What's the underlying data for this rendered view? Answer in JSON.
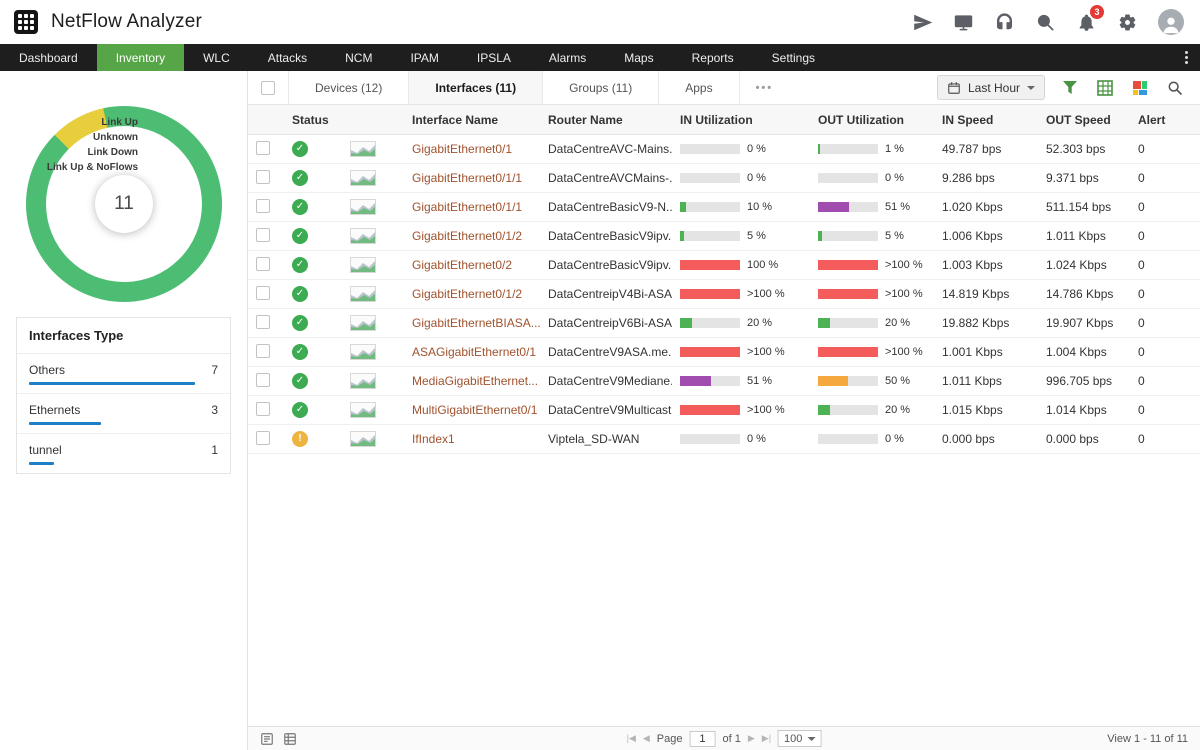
{
  "colors": {
    "accent_green": "#56a546",
    "link_brown": "#a0522d",
    "bar_blue": "#1d7fc4"
  },
  "header": {
    "title": "NetFlow Analyzer",
    "notification_count": "3"
  },
  "nav": {
    "items": [
      {
        "label": "Dashboard",
        "cls": ""
      },
      {
        "label": "Inventory",
        "cls": "active"
      },
      {
        "label": "WLC",
        "cls": ""
      },
      {
        "label": "Attacks",
        "cls": ""
      },
      {
        "label": "NCM",
        "cls": ""
      },
      {
        "label": "IPAM",
        "cls": ""
      },
      {
        "label": "IPSLA",
        "cls": ""
      },
      {
        "label": "Alarms",
        "cls": ""
      },
      {
        "label": "Maps",
        "cls": ""
      },
      {
        "label": "Reports",
        "cls": ""
      },
      {
        "label": "Settings",
        "cls": ""
      }
    ]
  },
  "sidebar": {
    "donut": {
      "center_value": "11",
      "start_angle": -45,
      "segments": [
        {
          "label": "Unknown",
          "value": 1,
          "color": "#e8ce3c"
        },
        {
          "label": "Link Up",
          "value": 10,
          "color": "#4dbd74"
        }
      ],
      "legend": [
        {
          "label": "Link Up"
        },
        {
          "label": "Unknown"
        },
        {
          "label": "Link Down"
        },
        {
          "label": "Link Up & NoFlows"
        }
      ]
    },
    "interfaces_type": {
      "title": "Interfaces Type",
      "items": [
        {
          "label": "Others",
          "count": "7",
          "fill_pct": 88
        },
        {
          "label": "Ethernets",
          "count": "3",
          "fill_pct": 38
        },
        {
          "label": "tunnel",
          "count": "1",
          "fill_pct": 13
        }
      ]
    }
  },
  "toolbar": {
    "tabs": [
      {
        "label": "Devices (12)",
        "cls": ""
      },
      {
        "label": "Interfaces (11)",
        "cls": "active"
      },
      {
        "label": "Groups (11)",
        "cls": ""
      },
      {
        "label": "Apps",
        "cls": ""
      }
    ],
    "overflow_label": "•••",
    "time_range": "Last Hour"
  },
  "table": {
    "columns": [
      "Status",
      "Interface Name",
      "Router Name",
      "IN Utilization",
      "OUT Utilization",
      "IN Speed",
      "OUT Speed",
      "Alert"
    ],
    "rows": [
      {
        "status_glyph": "✓",
        "status_color": "#3cab51",
        "interface": "GigabitEthernet0/1",
        "router": "DataCentreAVC-Mains...",
        "in_pct": "0 %",
        "in_fill": 0,
        "in_color": "#e4e4e4",
        "out_pct": "1 %",
        "out_fill": 3,
        "out_color": "#4db254",
        "in_speed": "49.787 bps",
        "out_speed": "52.303 bps",
        "alert": "0"
      },
      {
        "status_glyph": "✓",
        "status_color": "#3cab51",
        "interface": "GigabitEthernet0/1/1",
        "router": "DataCentreAVCMains-...",
        "in_pct": "0 %",
        "in_fill": 0,
        "in_color": "#e4e4e4",
        "out_pct": "0 %",
        "out_fill": 0,
        "out_color": "#e4e4e4",
        "in_speed": "9.286 bps",
        "out_speed": "9.371 bps",
        "alert": "0"
      },
      {
        "status_glyph": "✓",
        "status_color": "#3cab51",
        "interface": "GigabitEthernet0/1/1",
        "router": "DataCentreBasicV9-N...",
        "in_pct": "10 %",
        "in_fill": 10,
        "in_color": "#4db254",
        "out_pct": "51 %",
        "out_fill": 51,
        "out_color": "#a14db0",
        "in_speed": "1.020 Kbps",
        "out_speed": "511.154 bps",
        "alert": "0"
      },
      {
        "status_glyph": "✓",
        "status_color": "#3cab51",
        "interface": "GigabitEthernet0/1/2",
        "router": "DataCentreBasicV9ipv...",
        "in_pct": "5 %",
        "in_fill": 6,
        "in_color": "#4db254",
        "out_pct": "5 %",
        "out_fill": 6,
        "out_color": "#4db254",
        "in_speed": "1.006 Kbps",
        "out_speed": "1.011 Kbps",
        "alert": "0"
      },
      {
        "status_glyph": "✓",
        "status_color": "#3cab51",
        "interface": "GigabitEthernet0/2",
        "router": "DataCentreBasicV9ipv...",
        "in_pct": "100 %",
        "in_fill": 100,
        "in_color": "#f45b5b",
        "out_pct": ">100 %",
        "out_fill": 100,
        "out_color": "#f45b5b",
        "in_speed": "1.003 Kbps",
        "out_speed": "1.024 Kbps",
        "alert": "0"
      },
      {
        "status_glyph": "✓",
        "status_color": "#3cab51",
        "interface": "GigabitEthernet0/1/2",
        "router": "DataCentreipV4Bi-ASA",
        "in_pct": ">100 %",
        "in_fill": 100,
        "in_color": "#f45b5b",
        "out_pct": ">100 %",
        "out_fill": 100,
        "out_color": "#f45b5b",
        "in_speed": "14.819 Kbps",
        "out_speed": "14.786 Kbps",
        "alert": "0"
      },
      {
        "status_glyph": "✓",
        "status_color": "#3cab51",
        "interface": "GigabitEthernetBIASA...",
        "router": "DataCentreipV6Bi-ASA",
        "in_pct": "20 %",
        "in_fill": 20,
        "in_color": "#4db254",
        "out_pct": "20 %",
        "out_fill": 20,
        "out_color": "#4db254",
        "in_speed": "19.882 Kbps",
        "out_speed": "19.907 Kbps",
        "alert": "0"
      },
      {
        "status_glyph": "✓",
        "status_color": "#3cab51",
        "interface": "ASAGigabitEthernet0/1",
        "router": "DataCentreV9ASA.me...",
        "in_pct": ">100 %",
        "in_fill": 100,
        "in_color": "#f45b5b",
        "out_pct": ">100 %",
        "out_fill": 100,
        "out_color": "#f45b5b",
        "in_speed": "1.001 Kbps",
        "out_speed": "1.004 Kbps",
        "alert": "0"
      },
      {
        "status_glyph": "✓",
        "status_color": "#3cab51",
        "interface": "MediaGigabitEthernet...",
        "router": "DataCentreV9Mediane...",
        "in_pct": "51 %",
        "in_fill": 51,
        "in_color": "#a14db0",
        "out_pct": "50 %",
        "out_fill": 50,
        "out_color": "#f5a83e",
        "in_speed": "1.011 Kbps",
        "out_speed": "996.705 bps",
        "alert": "0"
      },
      {
        "status_glyph": "✓",
        "status_color": "#3cab51",
        "interface": "MultiGigabitEthernet0/1",
        "router": "DataCentreV9Multicast",
        "in_pct": ">100 %",
        "in_fill": 100,
        "in_color": "#f45b5b",
        "out_pct": "20 %",
        "out_fill": 20,
        "out_color": "#4db254",
        "in_speed": "1.015 Kbps",
        "out_speed": "1.014 Kbps",
        "alert": "0"
      },
      {
        "status_glyph": "!",
        "status_color": "#edb53f",
        "interface": "IfIndex1",
        "router": "Viptela_SD-WAN",
        "in_pct": "0 %",
        "in_fill": 0,
        "in_color": "#e4e4e4",
        "out_pct": "0 %",
        "out_fill": 0,
        "out_color": "#e4e4e4",
        "in_speed": "0.000 bps",
        "out_speed": "0.000 bps",
        "alert": "0"
      }
    ]
  },
  "footer": {
    "page_label": "Page",
    "page_value": "1",
    "of_label": "of 1",
    "page_size": "100",
    "view_info": "View 1 - 11 of 11",
    "pager": {
      "first": "|◀",
      "prev": "◀",
      "next": "▶",
      "last": "▶|"
    }
  }
}
